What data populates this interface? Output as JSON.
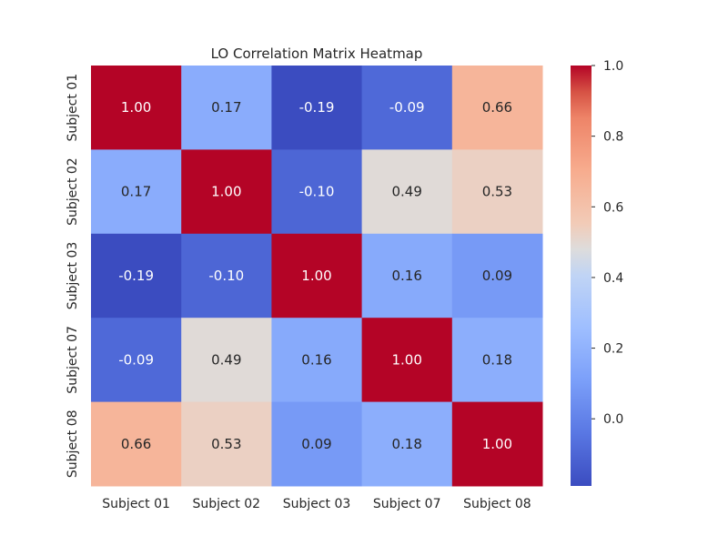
{
  "chart_data": {
    "type": "heatmap",
    "title": "LO Correlation Matrix Heatmap",
    "row_labels": [
      "Subject 01",
      "Subject 02",
      "Subject 03",
      "Subject 07",
      "Subject 08"
    ],
    "col_labels": [
      "Subject 01",
      "Subject 02",
      "Subject 03",
      "Subject 07",
      "Subject 08"
    ],
    "values": [
      [
        1.0,
        0.17,
        -0.19,
        -0.09,
        0.66
      ],
      [
        0.17,
        1.0,
        -0.1,
        0.49,
        0.53
      ],
      [
        -0.19,
        -0.1,
        1.0,
        0.16,
        0.09
      ],
      [
        -0.09,
        0.49,
        0.16,
        1.0,
        0.18
      ],
      [
        0.66,
        0.53,
        0.09,
        0.18,
        1.0
      ]
    ],
    "value_format": "2f",
    "colormap": "coolwarm",
    "vmin": -0.19,
    "vmax": 1.0,
    "colorbar": {
      "ticks": [
        0.0,
        0.2,
        0.4,
        0.6,
        0.8,
        1.0
      ],
      "tick_labels": [
        "0.0",
        "0.2",
        "0.4",
        "0.6",
        "0.8",
        "1.0"
      ]
    }
  }
}
